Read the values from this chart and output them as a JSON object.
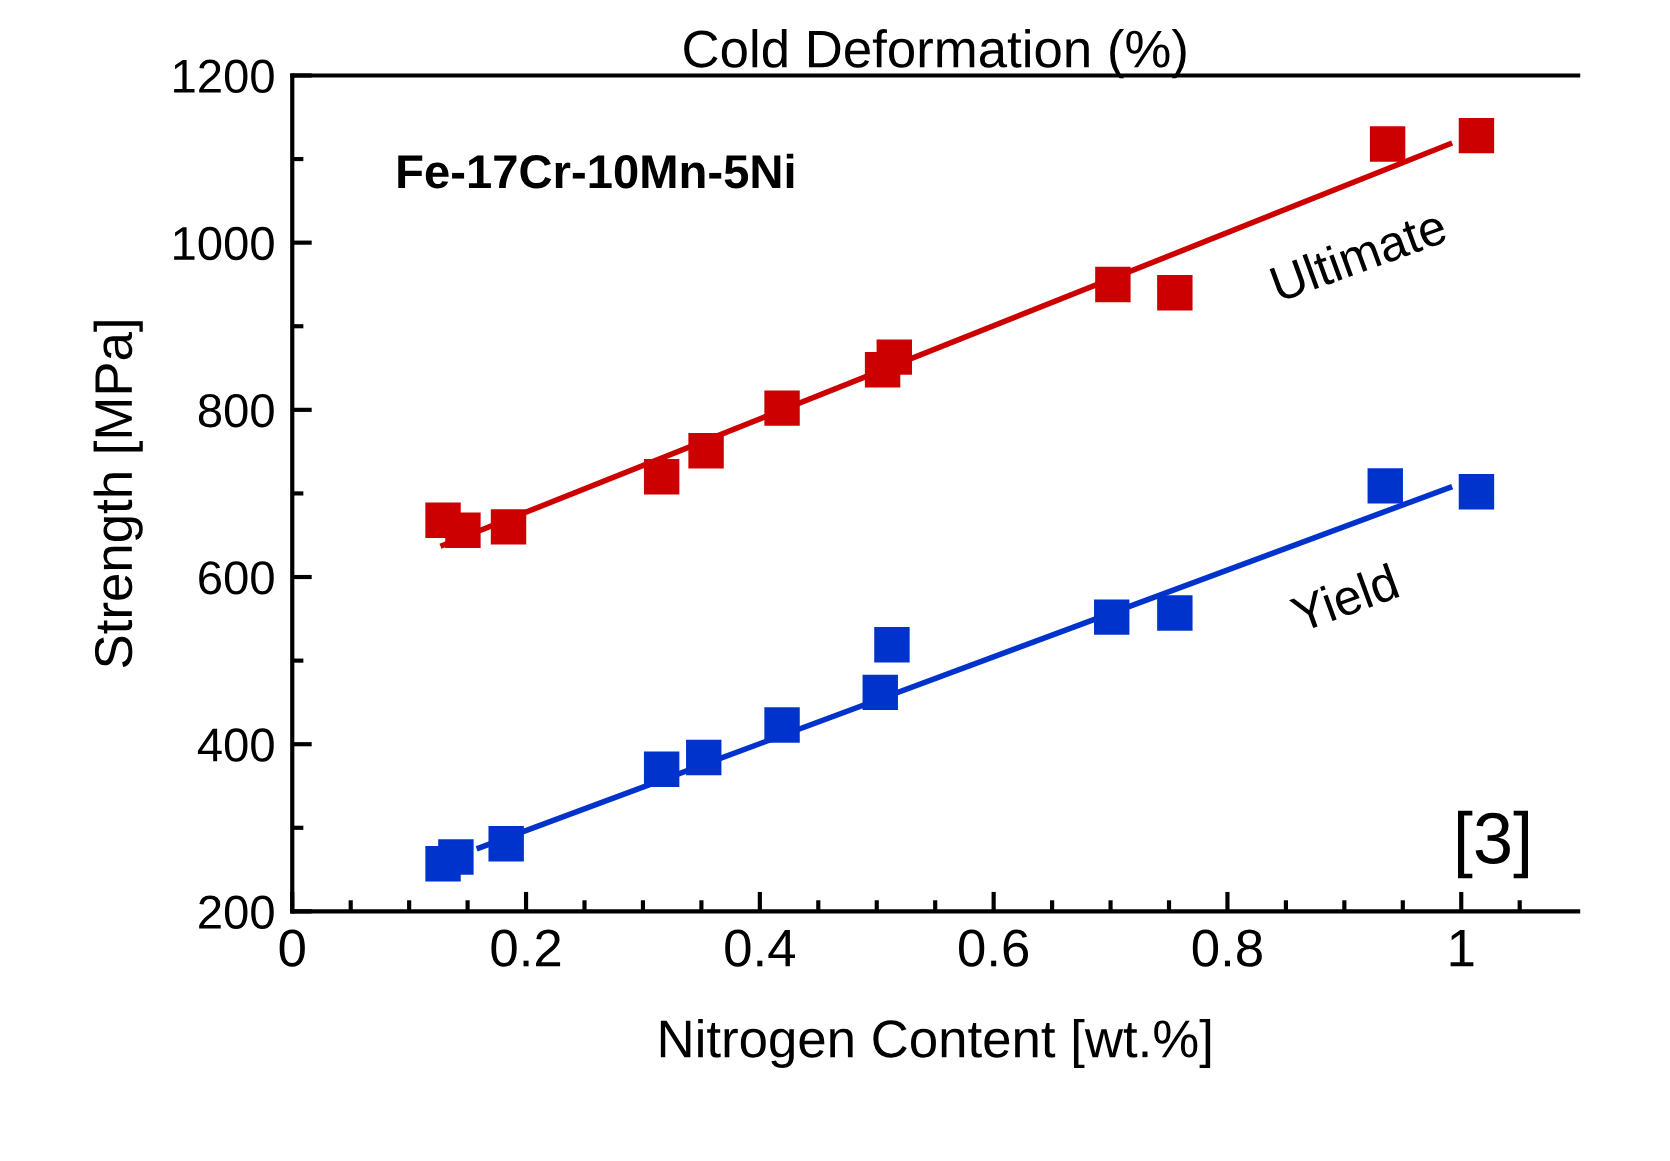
{
  "chart_data": {
    "type": "scatter",
    "title": "Cold Deformation (%)",
    "xlabel": "Nitrogen Content [wt.%]",
    "ylabel": "Strength [MPa]",
    "xlim": [
      0,
      1.1
    ],
    "ylim": [
      200,
      1200
    ],
    "xticks": [
      0,
      {
        "value": 0.05,
        "label": null
      },
      {
        "value": 0.1,
        "label": null
      },
      {
        "value": 0.15,
        "label": null
      },
      0.2,
      {
        "value": 0.25,
        "label": null
      },
      {
        "value": 0.3,
        "label": null
      },
      {
        "value": 0.35,
        "label": null
      },
      0.4,
      {
        "value": 0.45,
        "label": null
      },
      {
        "value": 0.5,
        "label": null
      },
      {
        "value": 0.55,
        "label": null
      },
      0.6,
      {
        "value": 0.65,
        "label": null
      },
      {
        "value": 0.7,
        "label": null
      },
      {
        "value": 0.75,
        "label": null
      },
      0.8,
      {
        "value": 0.85,
        "label": null
      },
      {
        "value": 0.9,
        "label": null
      },
      {
        "value": 0.95,
        "label": null
      },
      1,
      {
        "value": 1.05,
        "label": null
      }
    ],
    "yticks": [
      200,
      {
        "value": 300,
        "label": null
      },
      400,
      {
        "value": 500,
        "label": null
      },
      600,
      {
        "value": 700,
        "label": null
      },
      800,
      {
        "value": 900,
        "label": null
      },
      1000,
      {
        "value": 1100,
        "label": null
      },
      1200
    ],
    "marker": "square",
    "grid": false,
    "legend": false,
    "series": [
      {
        "type": "scatter",
        "color": "#cc0000",
        "x": [
          0.129,
          0.146,
          0.185,
          0.316,
          0.354,
          0.419,
          0.505,
          0.515,
          0.702,
          0.755,
          0.937,
          1.013
        ],
        "values": [
          668,
          656,
          660,
          720,
          751,
          802,
          848,
          863,
          950,
          940,
          1118,
          1128
        ]
      },
      {
        "type": "line",
        "color": "#cc0000",
        "marker": "none",
        "x": [
          0.129,
          0.99
        ],
        "values": [
          638,
          1118
        ]
      },
      {
        "type": "scatter",
        "color": "#0033cc",
        "x": [
          0.129,
          0.14,
          0.183,
          0.316,
          0.352,
          0.419,
          0.503,
          0.513,
          0.701,
          0.755,
          0.935,
          1.013
        ],
        "values": [
          257,
          265,
          281,
          370,
          384,
          423,
          462,
          519,
          552,
          557,
          709,
          702
        ]
      },
      {
        "type": "line",
        "color": "#0033cc",
        "marker": "none",
        "x": [
          0.16,
          0.99
        ],
        "values": [
          276,
          707
        ]
      }
    ],
    "annotations": [
      "Ultimate",
      "Yield",
      "Fe-17Cr-10Mn-5Ni",
      "[3]"
    ]
  }
}
